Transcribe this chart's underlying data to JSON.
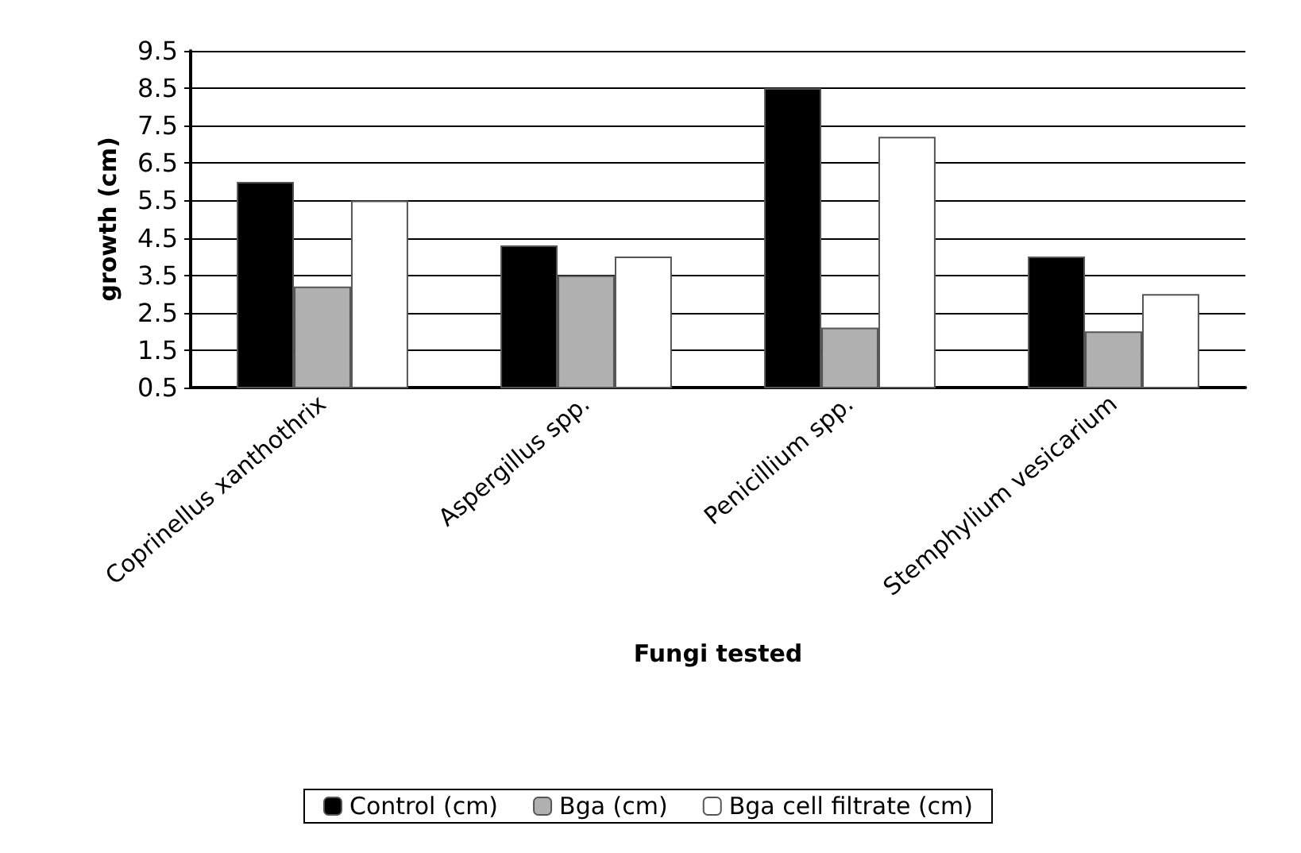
{
  "chart_data": {
    "type": "bar",
    "xlabel": "Fungi tested",
    "ylabel": "growth (cm)",
    "categories": [
      "Coprinellus xanthothrix",
      "Aspergillus spp.",
      "Penicillium spp.",
      "Stemphylium vesicarium"
    ],
    "series": [
      {
        "name": "Control (cm)",
        "color": "#000000",
        "values": [
          6.0,
          4.3,
          8.5,
          4.0
        ]
      },
      {
        "name": "Bga (cm)",
        "color": "#b0b0b0",
        "values": [
          3.2,
          3.5,
          2.1,
          2.0
        ]
      },
      {
        "name": "Bga cell filtrate (cm)",
        "color": "#ffffff",
        "values": [
          5.5,
          4.0,
          7.2,
          3.0
        ]
      }
    ],
    "ylim": [
      0.5,
      9.5
    ],
    "yticks": [
      0.5,
      1.5,
      2.5,
      3.5,
      4.5,
      5.5,
      6.5,
      7.5,
      8.5,
      9.5
    ],
    "grid": "y",
    "legend": "bottom"
  }
}
